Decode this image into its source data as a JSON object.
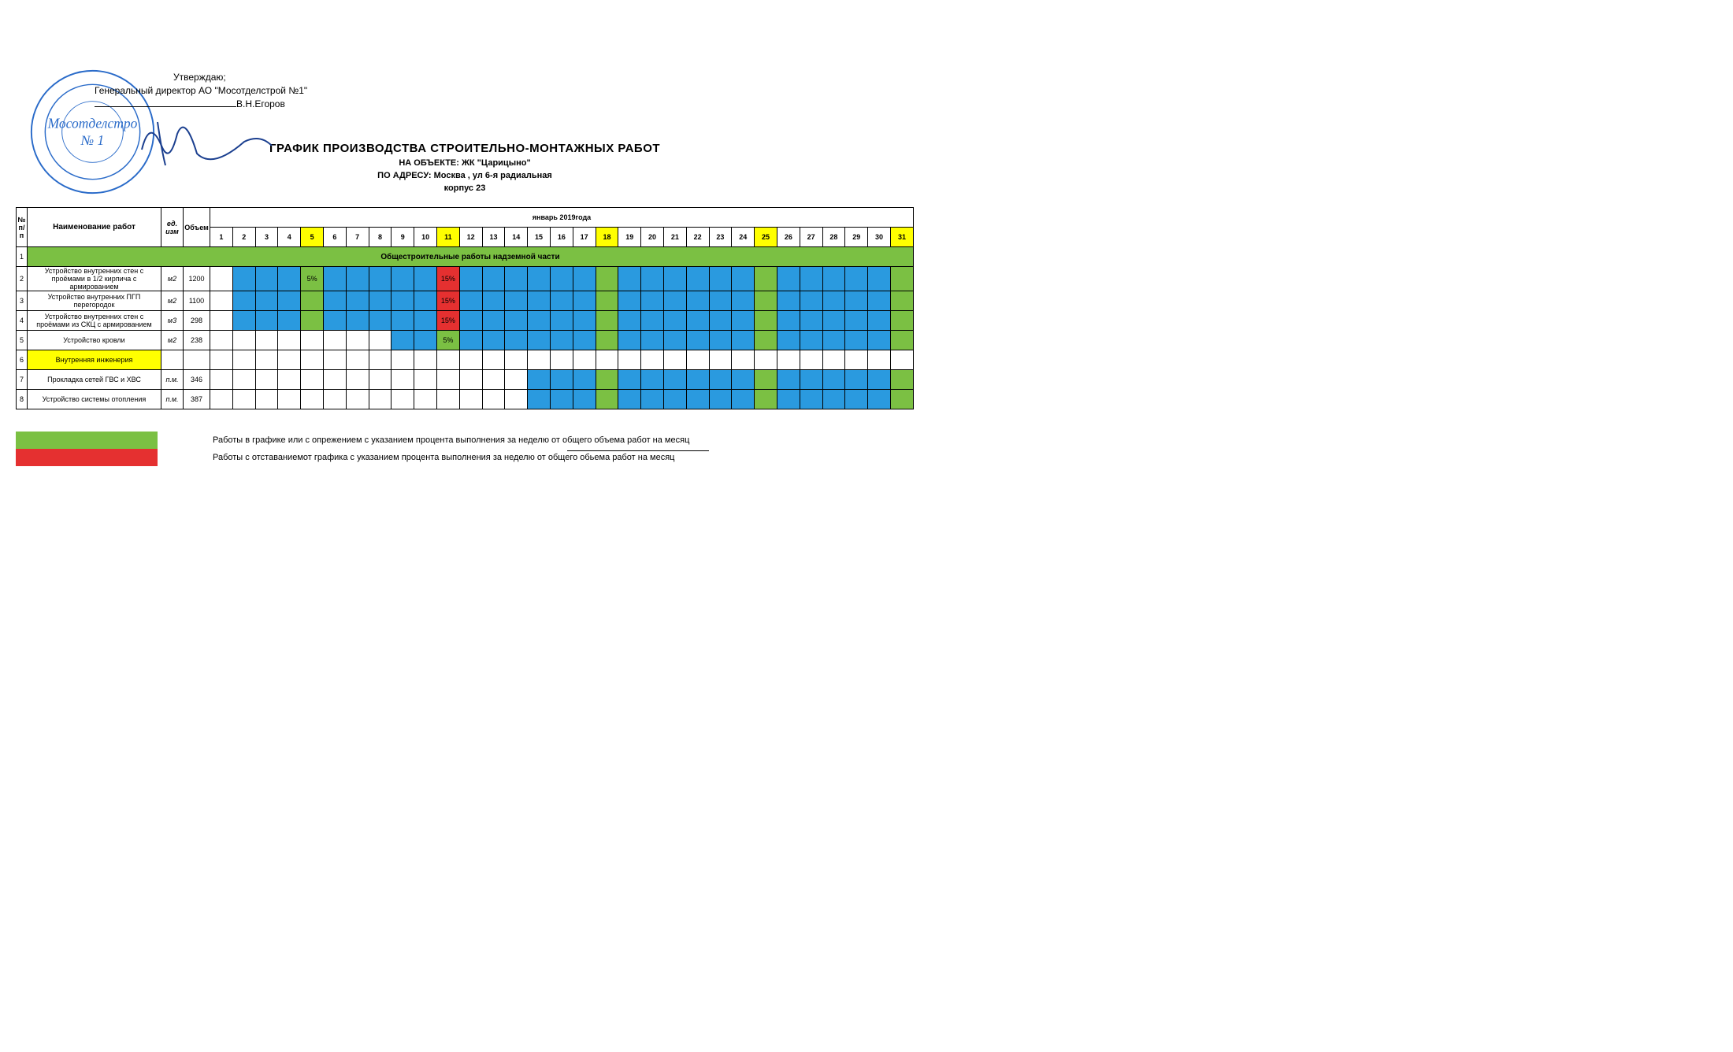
{
  "approval": {
    "line1": "Утверждаю;",
    "line2": "Генеральный директор  АО \"Мосотделстрой №1\"",
    "name": "В.Н.Егоров"
  },
  "stamp": {
    "text_top": "Мосотделстро",
    "text_mid": "№ 1",
    "color": "#2a6bc9"
  },
  "titles": {
    "main": "ГРАФИК ПРОИЗВОДСТВА СТРОИТЕЛЬНО-МОНТАЖНЫХ РАБОТ",
    "object": "НА ОБЪЕКТЕ: ЖК \"Царицыно\"",
    "address": "ПО АДРЕСУ: Москва , ул 6-я радиальная",
    "corpus": "корпус 23"
  },
  "headers": {
    "num": "№ п/п",
    "name": "Наименование работ",
    "unit": "ед. изм",
    "volume": "Объем",
    "month": "январь 2019года"
  },
  "days": [
    1,
    2,
    3,
    4,
    5,
    6,
    7,
    8,
    9,
    10,
    11,
    12,
    13,
    14,
    15,
    16,
    17,
    18,
    19,
    20,
    21,
    22,
    23,
    24,
    25,
    26,
    27,
    28,
    29,
    30,
    31
  ],
  "holiday_days": [
    5,
    11,
    18,
    25,
    31
  ],
  "section": {
    "num": "1",
    "title": "Общестроительные работы надземной части"
  },
  "rows": [
    {
      "num": "2",
      "name": "Устройство внутренних стен с проёмами в 1/2 кирпича с армированием",
      "unit": "м2",
      "volume": "1200",
      "cells": {
        "2": {
          "type": "blue"
        },
        "3": {
          "type": "blue"
        },
        "4": {
          "type": "blue"
        },
        "5": {
          "type": "green-pct",
          "text": "5%"
        },
        "6": {
          "type": "blue"
        },
        "7": {
          "type": "blue"
        },
        "8": {
          "type": "blue"
        },
        "9": {
          "type": "blue"
        },
        "10": {
          "type": "blue"
        },
        "11": {
          "type": "red",
          "text": "15%"
        },
        "12": {
          "type": "blue"
        },
        "13": {
          "type": "blue"
        },
        "14": {
          "type": "blue"
        },
        "15": {
          "type": "blue"
        },
        "16": {
          "type": "blue"
        },
        "17": {
          "type": "blue"
        },
        "18": {
          "type": "green"
        },
        "19": {
          "type": "blue"
        },
        "20": {
          "type": "blue"
        },
        "21": {
          "type": "blue"
        },
        "22": {
          "type": "blue"
        },
        "23": {
          "type": "blue"
        },
        "24": {
          "type": "blue"
        },
        "25": {
          "type": "green"
        },
        "26": {
          "type": "blue"
        },
        "27": {
          "type": "blue"
        },
        "28": {
          "type": "blue"
        },
        "29": {
          "type": "blue"
        },
        "30": {
          "type": "blue"
        },
        "31": {
          "type": "green"
        }
      }
    },
    {
      "num": "3",
      "name": "Устройство  внутренних ПГП перегородок",
      "unit": "м2",
      "volume": "1100",
      "cells": {
        "2": {
          "type": "blue"
        },
        "3": {
          "type": "blue"
        },
        "4": {
          "type": "blue"
        },
        "5": {
          "type": "green"
        },
        "6": {
          "type": "blue"
        },
        "7": {
          "type": "blue"
        },
        "8": {
          "type": "blue"
        },
        "9": {
          "type": "blue"
        },
        "10": {
          "type": "blue"
        },
        "11": {
          "type": "red",
          "text": "15%"
        },
        "12": {
          "type": "blue"
        },
        "13": {
          "type": "blue"
        },
        "14": {
          "type": "blue"
        },
        "15": {
          "type": "blue"
        },
        "16": {
          "type": "blue"
        },
        "17": {
          "type": "blue"
        },
        "18": {
          "type": "green"
        },
        "19": {
          "type": "blue"
        },
        "20": {
          "type": "blue"
        },
        "21": {
          "type": "blue"
        },
        "22": {
          "type": "blue"
        },
        "23": {
          "type": "blue"
        },
        "24": {
          "type": "blue"
        },
        "25": {
          "type": "green"
        },
        "26": {
          "type": "blue"
        },
        "27": {
          "type": "blue"
        },
        "28": {
          "type": "blue"
        },
        "29": {
          "type": "blue"
        },
        "30": {
          "type": "blue"
        },
        "31": {
          "type": "green"
        }
      }
    },
    {
      "num": "4",
      "name": "Устройство внутренних стен с проёмами из СКЦ с армированием",
      "unit": "м3",
      "volume": "298",
      "cells": {
        "2": {
          "type": "blue"
        },
        "3": {
          "type": "blue"
        },
        "4": {
          "type": "blue"
        },
        "5": {
          "type": "green"
        },
        "6": {
          "type": "blue"
        },
        "7": {
          "type": "blue"
        },
        "8": {
          "type": "blue"
        },
        "9": {
          "type": "blue"
        },
        "10": {
          "type": "blue"
        },
        "11": {
          "type": "red",
          "text": "15%"
        },
        "12": {
          "type": "blue"
        },
        "13": {
          "type": "blue"
        },
        "14": {
          "type": "blue"
        },
        "15": {
          "type": "blue"
        },
        "16": {
          "type": "blue"
        },
        "17": {
          "type": "blue"
        },
        "18": {
          "type": "green"
        },
        "19": {
          "type": "blue"
        },
        "20": {
          "type": "blue"
        },
        "21": {
          "type": "blue"
        },
        "22": {
          "type": "blue"
        },
        "23": {
          "type": "blue"
        },
        "24": {
          "type": "blue"
        },
        "25": {
          "type": "green"
        },
        "26": {
          "type": "blue"
        },
        "27": {
          "type": "blue"
        },
        "28": {
          "type": "blue"
        },
        "29": {
          "type": "blue"
        },
        "30": {
          "type": "blue"
        },
        "31": {
          "type": "green"
        }
      }
    },
    {
      "num": "5",
      "name": "Устройство кровли",
      "unit": "м2",
      "volume": "238",
      "cells": {
        "9": {
          "type": "blue"
        },
        "10": {
          "type": "blue"
        },
        "11": {
          "type": "green-pct",
          "text": "5%"
        },
        "12": {
          "type": "blue"
        },
        "13": {
          "type": "blue"
        },
        "14": {
          "type": "blue"
        },
        "15": {
          "type": "blue"
        },
        "16": {
          "type": "blue"
        },
        "17": {
          "type": "blue"
        },
        "18": {
          "type": "green"
        },
        "19": {
          "type": "blue"
        },
        "20": {
          "type": "blue"
        },
        "21": {
          "type": "blue"
        },
        "22": {
          "type": "blue"
        },
        "23": {
          "type": "blue"
        },
        "24": {
          "type": "blue"
        },
        "25": {
          "type": "green"
        },
        "26": {
          "type": "blue"
        },
        "27": {
          "type": "blue"
        },
        "28": {
          "type": "blue"
        },
        "29": {
          "type": "blue"
        },
        "30": {
          "type": "blue"
        },
        "31": {
          "type": "green"
        }
      }
    },
    {
      "num": "6",
      "name": "Внутренняя инженерия",
      "unit": "",
      "volume": "",
      "highlight": true,
      "cells": {}
    },
    {
      "num": "7",
      "name": "Прокладка сетей ГВС и ХВС",
      "unit": "п.м.",
      "volume": "346",
      "cells": {
        "15": {
          "type": "blue"
        },
        "16": {
          "type": "blue"
        },
        "17": {
          "type": "blue"
        },
        "18": {
          "type": "green"
        },
        "19": {
          "type": "blue"
        },
        "20": {
          "type": "blue"
        },
        "21": {
          "type": "blue"
        },
        "22": {
          "type": "blue"
        },
        "23": {
          "type": "blue"
        },
        "24": {
          "type": "blue"
        },
        "25": {
          "type": "green"
        },
        "26": {
          "type": "blue"
        },
        "27": {
          "type": "blue"
        },
        "28": {
          "type": "blue"
        },
        "29": {
          "type": "blue"
        },
        "30": {
          "type": "blue"
        },
        "31": {
          "type": "green"
        }
      }
    },
    {
      "num": "8",
      "name": "Устройство системы отопления",
      "unit": "п.м.",
      "volume": "387",
      "cells": {
        "15": {
          "type": "blue"
        },
        "16": {
          "type": "blue"
        },
        "17": {
          "type": "blue"
        },
        "18": {
          "type": "green"
        },
        "19": {
          "type": "blue"
        },
        "20": {
          "type": "blue"
        },
        "21": {
          "type": "blue"
        },
        "22": {
          "type": "blue"
        },
        "23": {
          "type": "blue"
        },
        "24": {
          "type": "blue"
        },
        "25": {
          "type": "green"
        },
        "26": {
          "type": "blue"
        },
        "27": {
          "type": "blue"
        },
        "28": {
          "type": "blue"
        },
        "29": {
          "type": "blue"
        },
        "30": {
          "type": "blue"
        },
        "31": {
          "type": "green"
        }
      }
    }
  ],
  "legend": {
    "green_text": "Работы в графике или с опрежением с указанием процента выполнения за неделю от общего объема работ на месяц",
    "red_text": "Работы с отставаниемот графика с указанием процента выполнения за неделю от общего обьема работ на месяц",
    "green_color": "#7bc043",
    "red_color": "#e53030"
  },
  "colors": {
    "blue": "#2a9adf",
    "green": "#7bc043",
    "red": "#e53030",
    "yellow": "#ffff00"
  }
}
